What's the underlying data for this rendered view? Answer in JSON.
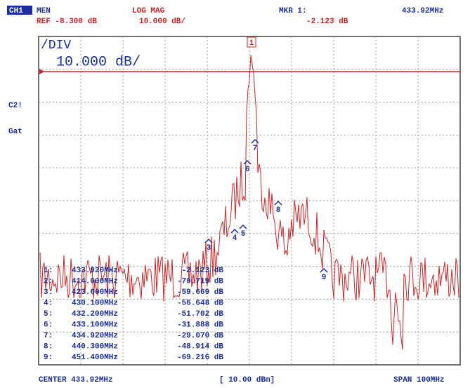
{
  "header": {
    "channel": "CH1",
    "memory": "MEN",
    "ref": "REF -8.300 dB",
    "format": "LOG MAG",
    "scale": "10.000 dB/",
    "marker_label": "MKR 1:",
    "marker_value": "-2.123 dB",
    "marker_freq": "433.92MHz"
  },
  "side": {
    "c2": "C2!",
    "gate": "Gat"
  },
  "plot": {
    "div_label": "/DIV",
    "div_value": "10.000 dB/"
  },
  "flags": [
    "1",
    "3",
    "4",
    "5",
    "6",
    "7",
    "8",
    "9"
  ],
  "markers": [
    {
      "index": "1:",
      "freq": "433.920MHz",
      "value": "-2.123 dB"
    },
    {
      "index": "2:",
      "freq": "414.000MHz",
      "value": "-70.719 dB"
    },
    {
      "index": "3:",
      "freq": "423.600MHz",
      "value": "-59.669 dB"
    },
    {
      "index": "4:",
      "freq": "430.100MHz",
      "value": "-56.648 dB"
    },
    {
      "index": "5:",
      "freq": "432.200MHz",
      "value": "-51.702 dB"
    },
    {
      "index": "6:",
      "freq": "433.100MHz",
      "value": "-31.888 dB"
    },
    {
      "index": "7:",
      "freq": "434.920MHz",
      "value": "-29.070 dB"
    },
    {
      "index": "8:",
      "freq": "440.300MHz",
      "value": "-48.914 dB"
    },
    {
      "index": "9:",
      "freq": "451.400MHz",
      "value": "-69.216 dB"
    }
  ],
  "footer": {
    "center": "CENTER 433.92MHz",
    "ref_level": "[ 10.00 dBm]",
    "span": "SPAN 100MHz"
  }
}
